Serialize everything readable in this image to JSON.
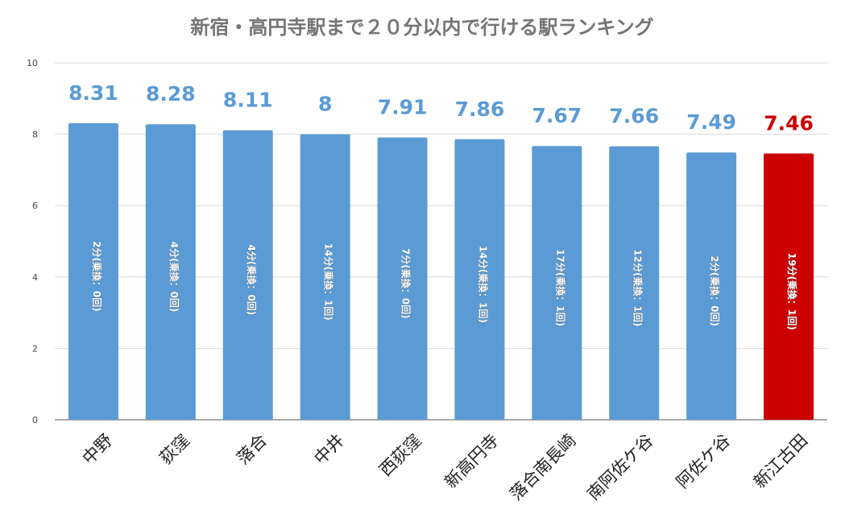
{
  "chart_data": {
    "type": "bar",
    "title": "新宿・高円寺駅まで２０分以内で行ける駅ランキング",
    "categories": [
      "中野",
      "荻窪",
      "落合",
      "中井",
      "西荻窪",
      "新高円寺",
      "落合南長崎",
      "南阿佐ケ谷",
      "阿佐ケ谷",
      "新江古田"
    ],
    "values": [
      8.31,
      8.28,
      8.11,
      8,
      7.91,
      7.86,
      7.67,
      7.66,
      7.49,
      7.46
    ],
    "value_labels": [
      "8.31",
      "8.28",
      "8.11",
      "8",
      "7.91",
      "7.86",
      "7.67",
      "7.66",
      "7.49",
      "7.46"
    ],
    "bar_notes": [
      "2分(乗換：0回)",
      "4分(乗換：0回)",
      "4分(乗換：0回)",
      "14分(乗換：1回)",
      "7分(乗換：0回)",
      "14分(乗換：1回)",
      "17分(乗換：1回)",
      "12分(乗換：1回)",
      "2分(乗換：0回)",
      "19分(乗換：1回)"
    ],
    "highlight_index": 9,
    "yticks": [
      0,
      2,
      4,
      6,
      8,
      10
    ],
    "ylim": [
      0,
      10
    ],
    "xlabel": "",
    "ylabel": "",
    "grid": true,
    "colors": {
      "bar": "#5b9bd5",
      "highlight": "#cc0000",
      "value_label": "#5b9bd5",
      "highlight_label": "#cc0000",
      "grid": "#d9d9d9",
      "axis": "#555555"
    }
  }
}
